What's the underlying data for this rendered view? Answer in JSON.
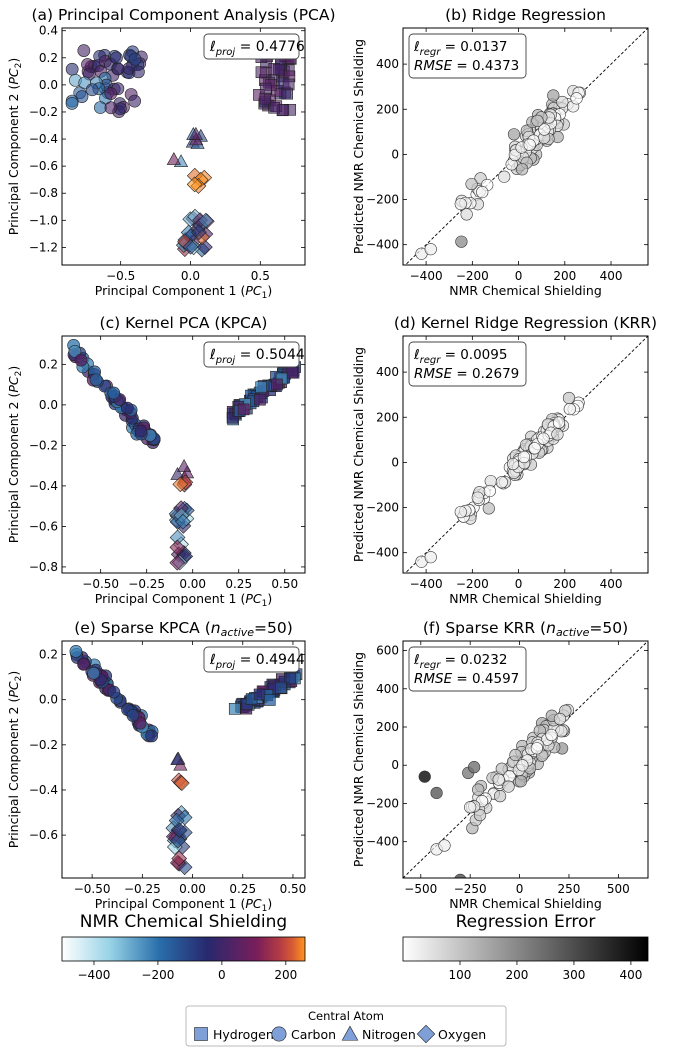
{
  "figure": {
    "colorbar_left": {
      "label": "NMR Chemical Shielding",
      "ticks": [
        -400,
        -200,
        0,
        200
      ],
      "range": [
        -500,
        260
      ]
    },
    "colorbar_right": {
      "label": "Regression Error",
      "ticks": [
        100,
        200,
        300,
        400
      ],
      "range": [
        0,
        430
      ]
    },
    "legend": {
      "title": "Central Atom",
      "items": [
        {
          "label": "Hydrogen",
          "marker": "square"
        },
        {
          "label": "Carbon",
          "marker": "circle"
        },
        {
          "label": "Nitrogen",
          "marker": "triangle"
        },
        {
          "label": "Oxygen",
          "marker": "diamond"
        }
      ]
    }
  },
  "chart_data": [
    {
      "id": "a",
      "type": "scatter",
      "title": "(a) Principal Component Analysis (PCA)",
      "xlabel": "Principal Component 1 (PC1)",
      "ylabel": "Principal Component 2 (PC2)",
      "xlim": [
        -0.92,
        0.82
      ],
      "ylim": [
        -1.33,
        0.42
      ],
      "xticks": [
        -0.5,
        0.0,
        0.5
      ],
      "xticklabels": [
        "−0.5",
        "0.0",
        "0.5"
      ],
      "yticks": [
        0.4,
        0.2,
        0.0,
        -0.2,
        -0.4,
        -0.6,
        -0.8,
        -1.0,
        -1.2
      ],
      "yticklabels": [
        "0.4",
        "0.2",
        "0.0",
        "−0.2",
        "−0.4",
        "−0.6",
        "−0.8",
        "−1.0",
        "−1.2"
      ],
      "annotation": "ℓproj = 0.4776",
      "clusters": [
        {
          "atom": "Carbon",
          "x_range": [
            -0.85,
            -0.35
          ],
          "y_range": [
            0.05,
            0.28
          ],
          "count": 30,
          "shield_range": [
            -100,
            60
          ]
        },
        {
          "atom": "Carbon",
          "x_range": [
            -0.85,
            -0.55
          ],
          "y_range": [
            -0.2,
            0.05
          ],
          "count": 15,
          "shield_range": [
            -300,
            -100
          ]
        },
        {
          "atom": "Carbon",
          "x_range": [
            -0.6,
            -0.35
          ],
          "y_range": [
            -0.2,
            0.05
          ],
          "count": 10,
          "shield_range": [
            -50,
            50
          ]
        },
        {
          "atom": "Hydrogen",
          "x_range": [
            0.48,
            0.72
          ],
          "y_range": [
            -0.2,
            0.3
          ],
          "count": 45,
          "shield_range": [
            -20,
            60
          ]
        },
        {
          "atom": "Nitrogen",
          "x_range": [
            -0.12,
            0.08
          ],
          "y_range": [
            -0.58,
            -0.28
          ],
          "count": 8,
          "shield_range": [
            -300,
            100
          ]
        },
        {
          "atom": "Oxygen",
          "x_range": [
            0.02,
            0.1
          ],
          "y_range": [
            -0.75,
            -0.65
          ],
          "count": 5,
          "shield_range": [
            220,
            260
          ]
        },
        {
          "atom": "Oxygen",
          "x_range": [
            -0.05,
            0.12
          ],
          "y_range": [
            -1.22,
            -0.95
          ],
          "count": 25,
          "shield_range": [
            -350,
            250
          ]
        }
      ]
    },
    {
      "id": "b",
      "type": "scatter",
      "title": "(b) Ridge Regression",
      "xlabel": "NMR Chemical Shielding",
      "ylabel": "Predicted NMR Chemical Shielding",
      "xlim": [
        -500,
        560
      ],
      "ylim": [
        -490,
        560
      ],
      "xticks": [
        -400,
        -200,
        0,
        200,
        400
      ],
      "xticklabels": [
        "−400",
        "−200",
        "0",
        "200",
        "400"
      ],
      "yticks": [
        400,
        200,
        0,
        -200,
        -400
      ],
      "yticklabels": [
        "400",
        "200",
        "0",
        "−200",
        "−400"
      ],
      "annotation_lines": [
        "ℓregr = 0.0137",
        "RMSE = 0.4373"
      ],
      "scatter_model": {
        "count": 120,
        "noise": 40
      }
    },
    {
      "id": "c",
      "type": "scatter",
      "title": "(c) Kernel PCA (KPCA)",
      "xlabel": "Principal Component 1 (PC1)",
      "ylabel": "Principal Component 2 (PC2)",
      "xlim": [
        -0.71,
        0.61
      ],
      "ylim": [
        -0.83,
        0.34
      ],
      "xticks": [
        -0.5,
        -0.25,
        0.0,
        0.25,
        0.5
      ],
      "xticklabels": [
        "−0.50",
        "−0.25",
        "0.00",
        "0.25",
        "0.50"
      ],
      "yticks": [
        0.2,
        0.0,
        -0.2,
        -0.4,
        -0.6,
        -0.8
      ],
      "yticklabels": [
        "0.2",
        "0.0",
        "−0.2",
        "−0.4",
        "−0.6",
        "−0.8"
      ],
      "annotation": "ℓproj = 0.5044",
      "bands": [
        {
          "atom": "Carbon",
          "from": [
            -0.66,
            0.28
          ],
          "to": [
            -0.2,
            -0.2
          ],
          "count": 55
        },
        {
          "atom": "Hydrogen",
          "from": [
            0.2,
            -0.06
          ],
          "to": [
            0.55,
            0.18
          ],
          "count": 60
        }
      ],
      "clusters": [
        {
          "atom": "Nitrogen",
          "x_range": [
            -0.09,
            -0.03
          ],
          "y_range": [
            -0.36,
            -0.3
          ],
          "count": 4,
          "shield_range": [
            -50,
            100
          ]
        },
        {
          "atom": "Oxygen",
          "x_range": [
            -0.08,
            -0.04
          ],
          "y_range": [
            -0.42,
            -0.36
          ],
          "count": 3,
          "shield_range": [
            150,
            260
          ]
        },
        {
          "atom": "Oxygen",
          "x_range": [
            -0.09,
            -0.03
          ],
          "y_range": [
            -0.78,
            -0.5
          ],
          "count": 20,
          "shield_range": [
            -400,
            150
          ]
        }
      ]
    },
    {
      "id": "d",
      "type": "scatter",
      "title": "(d) Kernel Ridge Regression (KRR)",
      "xlabel": "NMR Chemical Shielding",
      "ylabel": "Predicted NMR Chemical Shielding",
      "xlim": [
        -500,
        560
      ],
      "ylim": [
        -490,
        560
      ],
      "xticks": [
        -400,
        -200,
        0,
        200,
        400
      ],
      "xticklabels": [
        "−400",
        "−200",
        "0",
        "200",
        "400"
      ],
      "yticks": [
        400,
        200,
        0,
        -200,
        -400
      ],
      "yticklabels": [
        "400",
        "200",
        "0",
        "−200",
        "−400"
      ],
      "annotation_lines": [
        "ℓregr = 0.0095",
        "RMSE = 0.2679"
      ],
      "scatter_model": {
        "count": 120,
        "noise": 25
      }
    },
    {
      "id": "e",
      "type": "scatter",
      "title": "(e) Sparse KPCA (nactive=50)",
      "xlabel": "Principal Component 1 (PC1)",
      "ylabel": "Principal Component 2 (PC2)",
      "xlim": [
        -0.65,
        0.56
      ],
      "ylim": [
        -0.79,
        0.26
      ],
      "xticks": [
        -0.5,
        -0.25,
        0.0,
        0.25,
        0.5
      ],
      "xticklabels": [
        "−0.50",
        "−0.25",
        "0.00",
        "0.25",
        "0.50"
      ],
      "yticks": [
        0.2,
        0.0,
        -0.2,
        -0.4,
        -0.6
      ],
      "yticklabels": [
        "0.2",
        "0.0",
        "−0.2",
        "−0.4",
        "−0.6"
      ],
      "annotation": "ℓproj = 0.4944",
      "bands": [
        {
          "atom": "Carbon",
          "from": [
            -0.6,
            0.21
          ],
          "to": [
            -0.2,
            -0.15
          ],
          "count": 55
        },
        {
          "atom": "Hydrogen",
          "from": [
            0.22,
            -0.05
          ],
          "to": [
            0.52,
            0.11
          ],
          "count": 60
        }
      ],
      "clusters": [
        {
          "atom": "Nitrogen",
          "x_range": [
            -0.09,
            -0.04
          ],
          "y_range": [
            -0.31,
            -0.26
          ],
          "count": 3,
          "shield_range": [
            -50,
            100
          ]
        },
        {
          "atom": "Oxygen",
          "x_range": [
            -0.09,
            -0.04
          ],
          "y_range": [
            -0.37,
            -0.32
          ],
          "count": 3,
          "shield_range": [
            180,
            260
          ]
        },
        {
          "atom": "Oxygen",
          "x_range": [
            -0.1,
            -0.03
          ],
          "y_range": [
            -0.75,
            -0.5
          ],
          "count": 20,
          "shield_range": [
            -400,
            150
          ]
        }
      ]
    },
    {
      "id": "f",
      "type": "scatter",
      "title": "(f) Sparse KRR (nactive=50)",
      "xlabel": "NMR Chemical Shielding",
      "ylabel": "Predicted NMR Chemical Shielding",
      "xlim": [
        -590,
        650
      ],
      "ylim": [
        -590,
        650
      ],
      "xticks": [
        -500,
        -250,
        0,
        250,
        500
      ],
      "xticklabels": [
        "−500",
        "−250",
        "0",
        "250",
        "500"
      ],
      "yticks": [
        600,
        400,
        200,
        0,
        -200,
        -400
      ],
      "yticklabels": [
        "600",
        "400",
        "200",
        "0",
        "−200",
        "−400"
      ],
      "annotation_lines": [
        "ℓregr = 0.0232",
        "RMSE = 0.4597"
      ],
      "scatter_model": {
        "count": 120,
        "noise": 45
      },
      "outliers": [
        {
          "x": -480,
          "y": -60,
          "err": 420
        },
        {
          "x": -420,
          "y": -145,
          "err": 280
        },
        {
          "x": -260,
          "y": -40,
          "err": 220
        },
        {
          "x": -230,
          "y": -10,
          "err": 240
        },
        {
          "x": -300,
          "y": -600,
          "err": 300
        }
      ]
    }
  ]
}
